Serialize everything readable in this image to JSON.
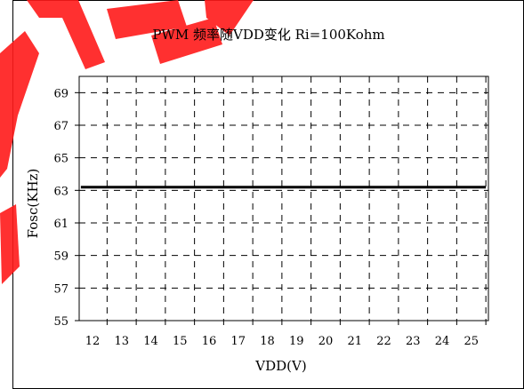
{
  "colors": {
    "background": "#ffffff",
    "axis": "#000000",
    "line": "#000000",
    "watermark": "#ff1a1a"
  },
  "chart_data": {
    "type": "line",
    "title": "PWM 频率随VDD变化 Ri=100Kohm",
    "xlabel": "VDD(V)",
    "ylabel": "Fosc(KHz)",
    "x_categories": [
      "12",
      "13",
      "14",
      "15",
      "16",
      "17",
      "18",
      "19",
      "20",
      "21",
      "22",
      "23",
      "24",
      "25"
    ],
    "ylim": [
      55,
      70
    ],
    "y_ticks": [
      55,
      57,
      59,
      61,
      63,
      65,
      67,
      69
    ],
    "grid": true,
    "grid_style": "dashed",
    "legend": "none",
    "series": [
      {
        "x": [
          11.6,
          25.5
        ],
        "values": [
          63.2,
          63.2
        ]
      }
    ]
  }
}
